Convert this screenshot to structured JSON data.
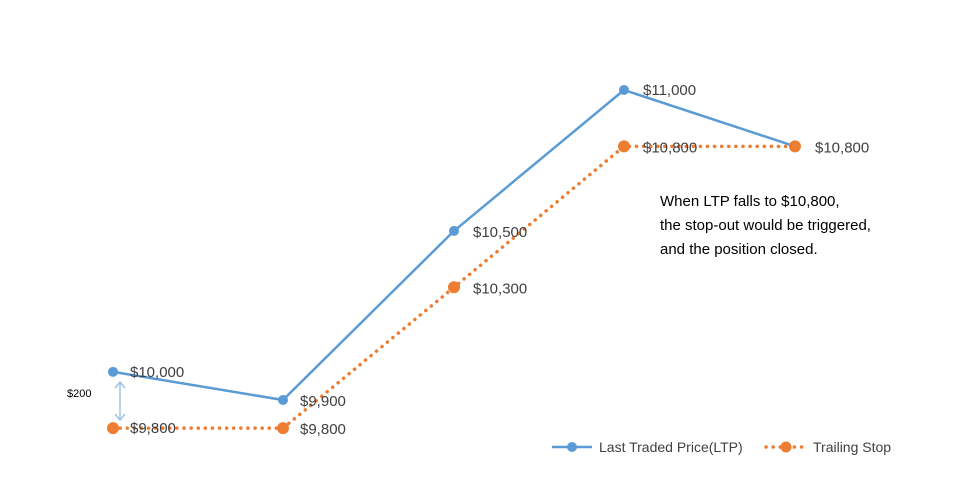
{
  "chart_data": {
    "type": "line",
    "x": [
      1,
      2,
      3,
      4,
      5
    ],
    "series": [
      {
        "name": "Last Traded Price(LTP)",
        "values": [
          10000,
          9900,
          10500,
          11000,
          10800
        ],
        "labels": [
          "$10,000",
          "$9,900",
          "$10,500",
          "$11,000",
          ""
        ],
        "color": "#5B9BD5",
        "style": "solid"
      },
      {
        "name": "Trailing Stop",
        "values": [
          9800,
          9800,
          10300,
          10800,
          10800
        ],
        "labels": [
          "$9,800",
          "$9,800",
          "$10,300",
          "$10,800",
          "$10,800"
        ],
        "color": "#ED7D31",
        "style": "dotted"
      }
    ],
    "gap_annotation": "$200",
    "annotation_lines": [
      "When LTP falls to $10,800,",
      "the stop-out would be triggered,",
      "and the position closed."
    ],
    "grid": false,
    "legend": "bottom-right"
  }
}
